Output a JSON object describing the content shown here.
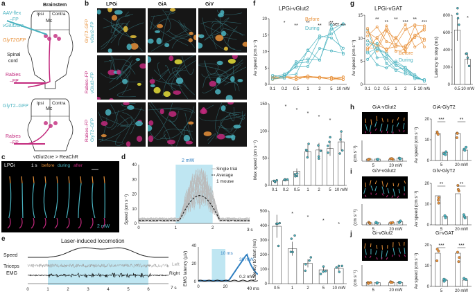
{
  "colors": {
    "cyan": "#4ab3c0",
    "orange": "#e8913a",
    "magenta": "#c2297d",
    "blue": "#2f7fc1",
    "lightblue": "#bfe6f2",
    "grey": "#9a9a9a",
    "navy": "#2c3e6b"
  },
  "panels": {
    "a": "a",
    "b": "b",
    "c": "c",
    "d": "d",
    "e": "e",
    "f": "f",
    "g": "g",
    "h": "h",
    "i": "i",
    "j": "j"
  },
  "a": {
    "brainstem": "Brainstem",
    "ipsi": "Ipsi",
    "contra": "Contra",
    "mc": "Mc",
    "aav_1": "AAV-flex",
    "aav_2": "–FP",
    "vglut2cre": "vGlut2cre",
    "glyt2gfp": "GlyT2GFP",
    "spinal_1": "Spinal",
    "spinal_2": "cord",
    "rabies_1": "Rabies",
    "rabies_2": "–FP",
    "bottom_glyt2": "GlyT2–GFP",
    "bottom_rabies_1": "Rabies",
    "bottom_rabies_2": "–FP"
  },
  "b": {
    "cols": [
      "LPGi",
      "GiA",
      "GiV"
    ],
    "row1_a": "GlyT2–GFP",
    "row1_b": "vGlut2–FP",
    "row2_a": "Rabies–FP",
    "row2_b": "vGlut2–FP",
    "row3_a": "Rabies–FP",
    "row3_b": "GlyT2–GFP"
  },
  "c": {
    "title": "vGlut2cre > ReaChR",
    "region": "LPGi",
    "time": "1 s",
    "before": "before",
    "during": "during",
    "after": "after",
    "power": "2 mW"
  },
  "d": {
    "power": "2 mW",
    "legend_single": "Single trial",
    "legend_avg": "Average",
    "legend_mouse": "1 mouse",
    "ylabel": "Speed (cm s⁻¹)",
    "xunit": "3 s"
  },
  "e": {
    "title": "Laser-induced locomotion",
    "speed": "Speed",
    "triceps": "Triceps",
    "emg": "EMG",
    "left": "Left",
    "right": "Right",
    "xunit": "7 s",
    "inset_ylabel": "EMG latency (µV)",
    "inset_10ms": "10 ms",
    "inset_30": "30 mW",
    "inset_02": "0.2 mW",
    "inset_xunit": "40 ms"
  },
  "f": {
    "title": "LPGi-vGlut2",
    "before": "Before",
    "laser": "laser",
    "during": "During",
    "ylabel_top": "Av speed (cm s⁻¹)",
    "ylabel_mid": "Max speed (cm s⁻¹)",
    "ylabel_bot": "Latency to start (ms)"
  },
  "g": {
    "title": "LPGi-vGAT",
    "before": "Before",
    "during": "During",
    "ylabel": "Av speed (cm s⁻¹)",
    "ylabel_right": "Latency to stop (ms)"
  },
  "hij": {
    "h_left": "GiA-vGlut2",
    "h_right": "GiA-GlyT2",
    "i_left": "GiV-vGlut2",
    "i_right": "GiV-GlyT2",
    "j_left": "Gi-vGlut2",
    "j_right": "Gi-vGAT",
    "ylabel_right": "Av speed (cm s⁻¹)",
    "ylabel_left": "(cm s⁻¹)"
  },
  "chart_data": [
    {
      "type": "line",
      "panel": "f-top",
      "x": [
        "0.1",
        "0.2",
        "0.5",
        "1",
        "2",
        "5",
        "10 mW"
      ],
      "ylim": [
        0,
        20
      ],
      "yticks": [
        0,
        5,
        10,
        15,
        20
      ],
      "series": [
        {
          "name": "Before",
          "values": [
            2,
            2,
            2,
            2,
            2,
            2,
            2
          ]
        },
        {
          "name": "During",
          "values": [
            2,
            3,
            5,
            8,
            11,
            13,
            14
          ]
        }
      ],
      "significance": [
        "*",
        "**",
        "**",
        "**",
        "**",
        "***"
      ]
    },
    {
      "type": "bar",
      "panel": "f-mid",
      "categories": [
        "0.1",
        "0.2",
        "0.5",
        "1",
        "2",
        "5",
        "10 mW"
      ],
      "values": [
        8,
        9,
        26,
        62,
        65,
        68,
        80
      ],
      "ylim": [
        0,
        150
      ],
      "yticks": [
        0,
        50,
        100,
        150
      ],
      "significance": [
        "*",
        "*",
        "*",
        "*",
        "*"
      ]
    },
    {
      "type": "bar",
      "panel": "f-bot",
      "categories": [
        "0.5",
        "1",
        "2",
        "5",
        "10 mW"
      ],
      "values": [
        395,
        240,
        140,
        95,
        105
      ],
      "ylim": [
        0,
        500
      ],
      "yticks": [
        0,
        100,
        200,
        300,
        400,
        500
      ],
      "significance": [
        "*",
        "*",
        "*",
        "*"
      ]
    },
    {
      "type": "line",
      "panel": "g-left",
      "x": [
        "0.1",
        "0.2",
        "0.5",
        "1",
        "2",
        "5",
        "10 mW"
      ],
      "ylim": [
        0,
        15
      ],
      "yticks": [
        0,
        5,
        10,
        15
      ],
      "series": [
        {
          "name": "Before",
          "values": [
            10,
            10,
            10,
            10,
            10,
            10,
            10
          ]
        },
        {
          "name": "During",
          "values": [
            9,
            7,
            5,
            4,
            3,
            2,
            1
          ]
        }
      ],
      "significance": [
        "**",
        "**",
        "**",
        "***",
        "**",
        "***"
      ]
    },
    {
      "type": "bar",
      "panel": "g-right",
      "categories": [
        "0.5",
        "10 mW"
      ],
      "values": [
        630,
        290
      ],
      "ylim": [
        0,
        800
      ],
      "yticks": [
        0,
        200,
        400,
        600,
        800
      ],
      "significance": [
        "*"
      ]
    },
    {
      "type": "bar",
      "panel": "h-left",
      "categories": [
        "5",
        "20 mW"
      ],
      "series": [
        {
          "name": "Before",
          "values": [
            2,
            2
          ]
        },
        {
          "name": "During",
          "values": [
            2,
            3
          ]
        }
      ],
      "ylim": [
        0,
        20
      ]
    },
    {
      "type": "bar",
      "panel": "h-right",
      "categories": [
        "5",
        "20 mW"
      ],
      "series": [
        {
          "name": "Before",
          "values": [
            13,
            13
          ]
        },
        {
          "name": "During",
          "values": [
            4,
            5
          ]
        }
      ],
      "ylim": [
        0,
        20
      ],
      "yticks": [
        0,
        10,
        20
      ],
      "significance": [
        "***",
        "**"
      ]
    },
    {
      "type": "bar",
      "panel": "i-left",
      "categories": [
        "5",
        "20 mW"
      ],
      "series": [
        {
          "name": "Before",
          "values": [
            2,
            2
          ]
        },
        {
          "name": "During",
          "values": [
            2,
            3
          ]
        }
      ],
      "ylim": [
        0,
        20
      ]
    },
    {
      "type": "bar",
      "panel": "i-right",
      "categories": [
        "5",
        "20 mW"
      ],
      "series": [
        {
          "name": "Before",
          "values": [
            14,
            15
          ]
        },
        {
          "name": "During",
          "values": [
            4,
            4
          ]
        }
      ],
      "ylim": [
        0,
        20
      ],
      "yticks": [
        0,
        10,
        20
      ],
      "significance": [
        "**",
        "**"
      ]
    },
    {
      "type": "bar",
      "panel": "j-left",
      "categories": [
        "5",
        "20 mW"
      ],
      "series": [
        {
          "name": "Before",
          "values": [
            3,
            3
          ]
        },
        {
          "name": "During",
          "values": [
            3,
            3
          ]
        }
      ],
      "ylim": [
        0,
        20
      ]
    },
    {
      "type": "bar",
      "panel": "j-right",
      "categories": [
        "5",
        "20 mW"
      ],
      "series": [
        {
          "name": "Before",
          "values": [
            16,
            16
          ]
        },
        {
          "name": "During",
          "values": [
            3,
            3
          ]
        }
      ],
      "ylim": [
        0,
        20
      ],
      "yticks": [
        0,
        10,
        20
      ],
      "significance": [
        "***",
        "***"
      ]
    }
  ]
}
